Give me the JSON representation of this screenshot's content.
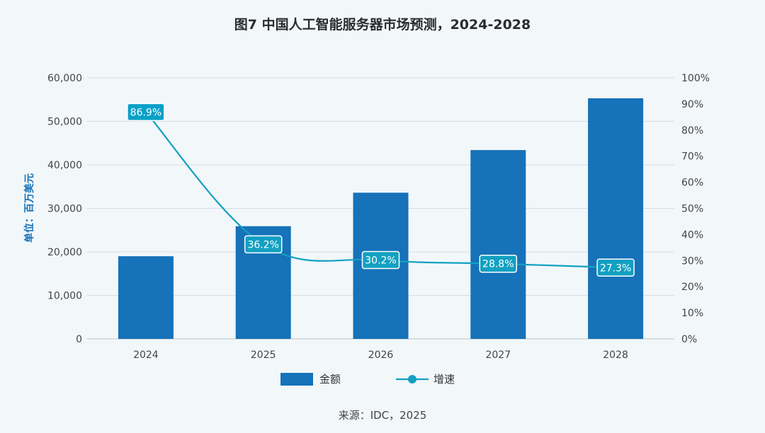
{
  "chart_data": {
    "type": "bar",
    "title": "图7 中国人工智能服务器市场预测，2024-2028",
    "source": "来源：IDC，2025",
    "ylabel_left": "单位：百万美元",
    "categories": [
      "2024",
      "2025",
      "2026",
      "2027",
      "2028"
    ],
    "y_left_ticks": [
      "0",
      "10,000",
      "20,000",
      "30,000",
      "40,000",
      "50,000",
      "60,000"
    ],
    "y_left_lim": [
      0,
      60000
    ],
    "y_right_ticks": [
      "0%",
      "10%",
      "20%",
      "30%",
      "40%",
      "50%",
      "60%",
      "70%",
      "80%",
      "90%",
      "100%"
    ],
    "y_right_lim": [
      0,
      100
    ],
    "grid": true,
    "legend_position": "bottom",
    "series": [
      {
        "name": "金额",
        "type": "bar",
        "axis": "left",
        "color": "#1672b9",
        "values": [
          19000,
          25900,
          33600,
          43400,
          55300
        ]
      },
      {
        "name": "增速",
        "type": "line",
        "axis": "right",
        "color": "#13a0c2",
        "values": [
          86.9,
          36.2,
          30.2,
          28.8,
          27.3
        ],
        "labels": [
          "86.9%",
          "36.2%",
          "30.2%",
          "28.8%",
          "27.3%"
        ]
      }
    ]
  }
}
